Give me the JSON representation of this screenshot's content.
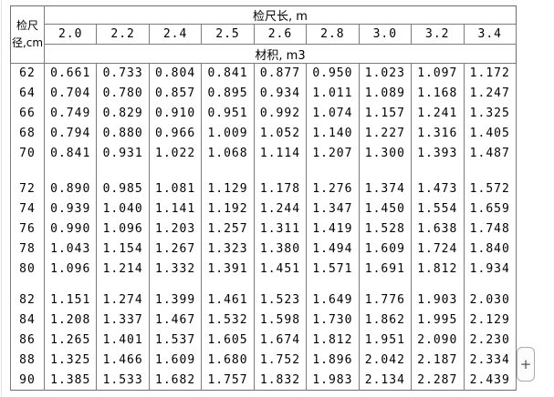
{
  "panel": {
    "add_button_label": "+"
  },
  "table": {
    "corner_header": {
      "line1": "检尺",
      "line2": "径,cm"
    },
    "length_header": "检尺长, m",
    "volume_header": "材积, m3",
    "lengths": [
      "2.0",
      "2.2",
      "2.4",
      "2.5",
      "2.6",
      "2.8",
      "3.0",
      "3.2",
      "3.4"
    ],
    "blocks": [
      [
        {
          "diameter": "62",
          "values": [
            "0.661",
            "0.733",
            "0.804",
            "0.841",
            "0.877",
            "0.950",
            "1.023",
            "1.097",
            "1.172"
          ]
        },
        {
          "diameter": "64",
          "values": [
            "0.704",
            "0.780",
            "0.857",
            "0.895",
            "0.934",
            "1.011",
            "1.089",
            "1.168",
            "1.247"
          ]
        },
        {
          "diameter": "66",
          "values": [
            "0.749",
            "0.829",
            "0.910",
            "0.951",
            "0.992",
            "1.074",
            "1.157",
            "1.241",
            "1.325"
          ]
        },
        {
          "diameter": "68",
          "values": [
            "0.794",
            "0.880",
            "0.966",
            "1.009",
            "1.052",
            "1.140",
            "1.227",
            "1.316",
            "1.405"
          ]
        },
        {
          "diameter": "70",
          "values": [
            "0.841",
            "0.931",
            "1.022",
            "1.068",
            "1.114",
            "1.207",
            "1.300",
            "1.393",
            "1.487"
          ]
        }
      ],
      [
        {
          "diameter": "72",
          "values": [
            "0.890",
            "0.985",
            "1.081",
            "1.129",
            "1.178",
            "1.276",
            "1.374",
            "1.473",
            "1.572"
          ]
        },
        {
          "diameter": "74",
          "values": [
            "0.939",
            "1.040",
            "1.141",
            "1.192",
            "1.244",
            "1.347",
            "1.450",
            "1.554",
            "1.659"
          ]
        },
        {
          "diameter": "76",
          "values": [
            "0.990",
            "1.096",
            "1.203",
            "1.257",
            "1.311",
            "1.419",
            "1.528",
            "1.638",
            "1.748"
          ]
        },
        {
          "diameter": "78",
          "values": [
            "1.043",
            "1.154",
            "1.267",
            "1.323",
            "1.380",
            "1.494",
            "1.609",
            "1.724",
            "1.840"
          ]
        },
        {
          "diameter": "80",
          "values": [
            "1.096",
            "1.214",
            "1.332",
            "1.391",
            "1.451",
            "1.571",
            "1.691",
            "1.812",
            "1.934"
          ]
        }
      ],
      [
        {
          "diameter": "82",
          "values": [
            "1.151",
            "1.274",
            "1.399",
            "1.461",
            "1.523",
            "1.649",
            "1.776",
            "1.903",
            "2.030"
          ]
        },
        {
          "diameter": "84",
          "values": [
            "1.208",
            "1.337",
            "1.467",
            "1.532",
            "1.598",
            "1.730",
            "1.862",
            "1.995",
            "2.129"
          ]
        },
        {
          "diameter": "86",
          "values": [
            "1.265",
            "1.401",
            "1.537",
            "1.605",
            "1.674",
            "1.812",
            "1.951",
            "2.090",
            "2.230"
          ]
        },
        {
          "diameter": "88",
          "values": [
            "1.325",
            "1.466",
            "1.609",
            "1.680",
            "1.752",
            "1.896",
            "2.042",
            "2.187",
            "2.334"
          ]
        },
        {
          "diameter": "90",
          "values": [
            "1.385",
            "1.533",
            "1.682",
            "1.757",
            "1.832",
            "1.983",
            "2.134",
            "2.287",
            "2.439"
          ]
        }
      ]
    ]
  },
  "colors": {
    "table_border": "#7c7c7c",
    "text": "#000000",
    "button_border": "#ababab",
    "button_background": "#fcfcfc"
  }
}
